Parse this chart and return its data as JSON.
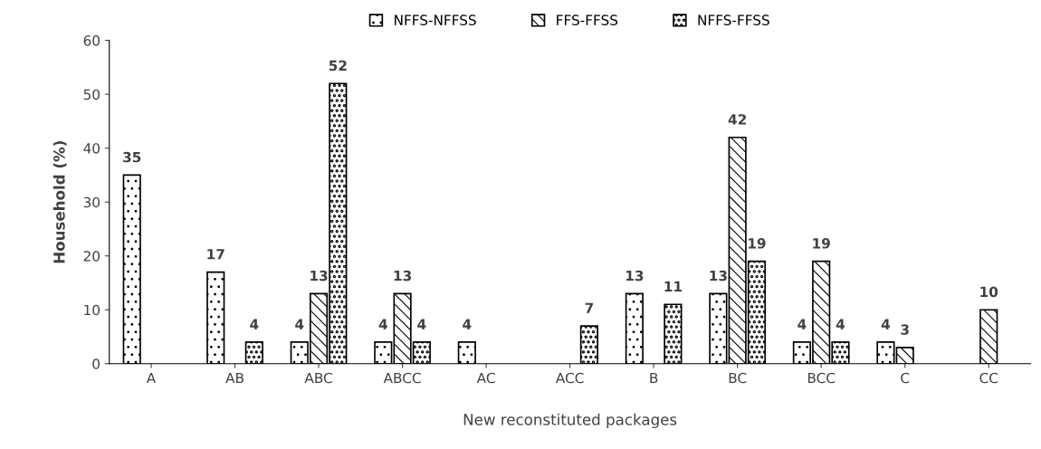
{
  "chart_data": {
    "type": "bar",
    "xlabel": "New reconstituted packages",
    "ylabel": "Household (%)",
    "categories": [
      "A",
      "AB",
      "ABC",
      "ABCC",
      "AC",
      "ACC",
      "B",
      "BC",
      "BCC",
      "C",
      "CC"
    ],
    "series": [
      {
        "name": "NFFS-NFFSS",
        "color": "#000000",
        "values": [
          35,
          17,
          4,
          4,
          4,
          null,
          13,
          13,
          4,
          4,
          null
        ]
      },
      {
        "name": "FFS-FFSS",
        "color": "#000000",
        "values": [
          null,
          null,
          13,
          13,
          null,
          null,
          null,
          42,
          19,
          3,
          10
        ]
      },
      {
        "name": "NFFS-FFSS",
        "color": "#000000",
        "values": [
          null,
          4,
          52,
          4,
          null,
          7,
          11,
          19,
          4,
          null,
          null
        ]
      }
    ],
    "ylim": [
      0,
      60
    ],
    "yticks": [
      0,
      10,
      20,
      30,
      40,
      50,
      60
    ],
    "grid": false,
    "legend": "top",
    "data_labels": true
  }
}
